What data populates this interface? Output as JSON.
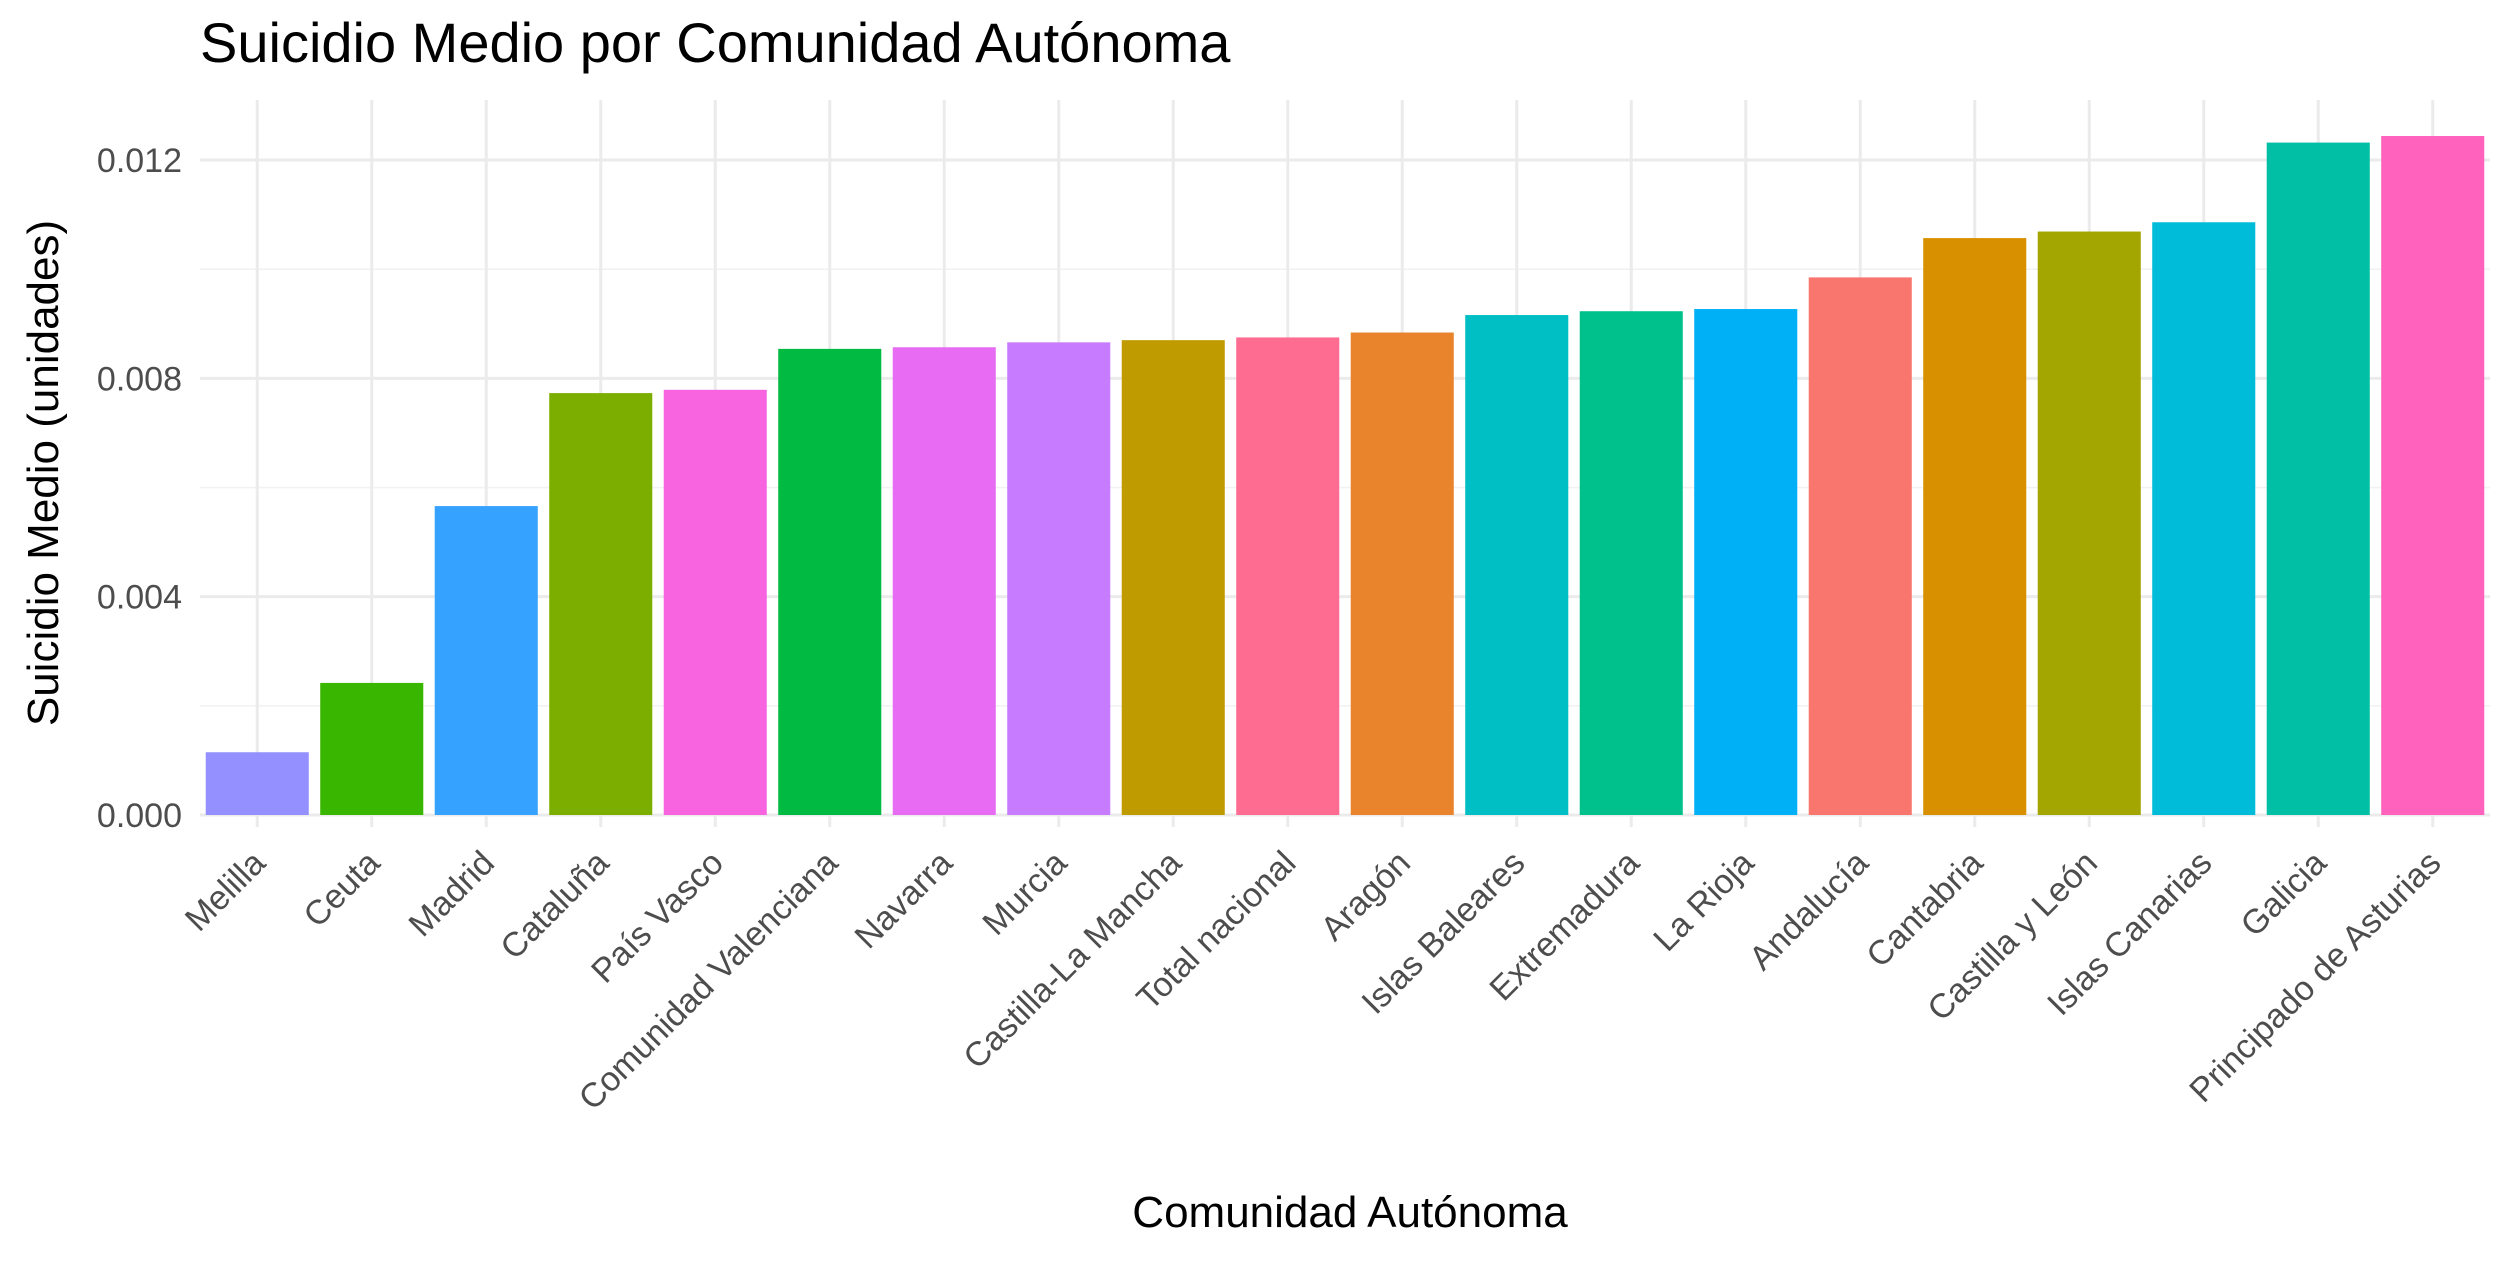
{
  "chart_data": {
    "type": "bar",
    "title": "Suicidio Medio por Comunidad Autónoma",
    "xlabel": "Comunidad Autónoma",
    "ylabel": "Suicidio Medio (unidades)",
    "ylim": [
      0,
      0.0131
    ],
    "yticks": [
      {
        "value": 0.0,
        "label": "0.000"
      },
      {
        "value": 0.004,
        "label": "0.004"
      },
      {
        "value": 0.008,
        "label": "0.008"
      },
      {
        "value": 0.012,
        "label": "0.012"
      }
    ],
    "grid": true,
    "legend": "none",
    "categories": [
      "Melilla",
      "Ceuta",
      "Madrid",
      "Cataluña",
      "País Vasco",
      "Comunidad Valenciana",
      "Navarra",
      "Murcia",
      "Castilla-La Mancha",
      "Total nacional",
      "Aragón",
      "Islas Baleares",
      "Extremadura",
      "La Rioja",
      "Andalucía",
      "Cantabria",
      "Castilla y León",
      "Islas Canarias",
      "Galicia",
      "Principado de Asturias"
    ],
    "values": [
      0.00115,
      0.00242,
      0.00566,
      0.00773,
      0.00779,
      0.00854,
      0.00857,
      0.00866,
      0.0087,
      0.00875,
      0.00884,
      0.00916,
      0.00923,
      0.00927,
      0.00985,
      0.01057,
      0.01069,
      0.01086,
      0.01232,
      0.01244
    ],
    "colors": [
      "#9590FF",
      "#39B600",
      "#35A2FF",
      "#7CAE00",
      "#F863DF",
      "#00BA42",
      "#E76BF3",
      "#C77CFF",
      "#C09B00",
      "#FF6C91",
      "#E9842C",
      "#00BFC4",
      "#00C08B",
      "#00B0F6",
      "#F8766D",
      "#D89000",
      "#A3A500",
      "#00BCD8",
      "#00BFA5",
      "#FF62BC"
    ]
  }
}
